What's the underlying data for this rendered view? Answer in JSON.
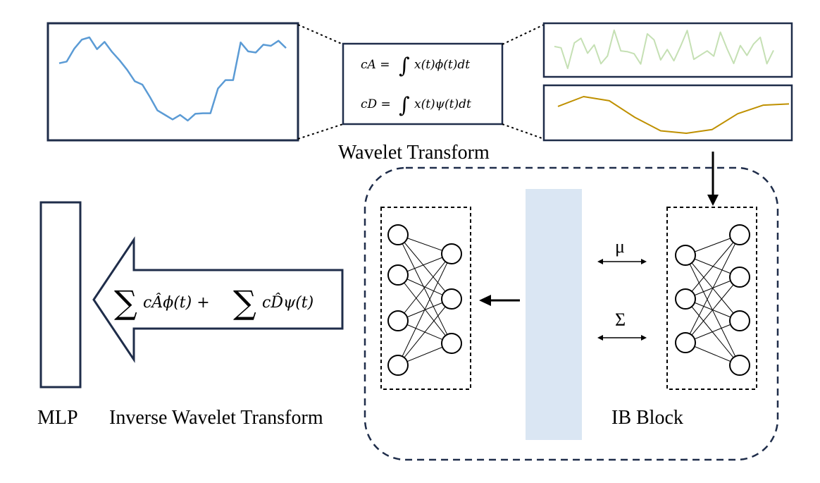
{
  "labels": {
    "wavelet_transform": "Wavelet Transform",
    "mlp": "MLP",
    "inverse_wavelet_transform": "Inverse Wavelet Transform",
    "ib_block": "IB Block",
    "mu": "μ",
    "sigma": "Σ"
  },
  "formulas": {
    "cA_lhs": "cA =",
    "cA_rhs": "x(t)ϕ(t)dt",
    "cD_lhs": "cD =",
    "cD_rhs": "x(t)ψ(t)dt",
    "integral": "∫",
    "reconstruction_a": "cÂϕ(t) +",
    "reconstruction_d": "cD̂ψ(t)",
    "sum": "∑"
  },
  "signals": {
    "input": [
      0.0,
      0.03,
      0.26,
      0.42,
      0.46,
      0.25,
      0.38,
      0.2,
      0.05,
      -0.12,
      -0.32,
      -0.38,
      -0.6,
      -0.84,
      -0.92,
      -1.0,
      -0.92,
      -1.02,
      -0.9,
      -0.89,
      -0.89,
      -0.45,
      -0.3,
      -0.3,
      0.37,
      0.21,
      0.19,
      0.33,
      0.31,
      0.4,
      0.27
    ],
    "approximation": [
      0.55,
      0.95,
      0.78,
      0.1,
      -0.45,
      -0.55,
      -0.4,
      0.25,
      0.6,
      0.65
    ]
  },
  "colors": {
    "input_line": "#5b9bd5",
    "detail_line": "#c5e0b4",
    "approx_line": "#bf9000",
    "frame": "#1f2d4a",
    "latent_bar": "#dae6f3"
  }
}
